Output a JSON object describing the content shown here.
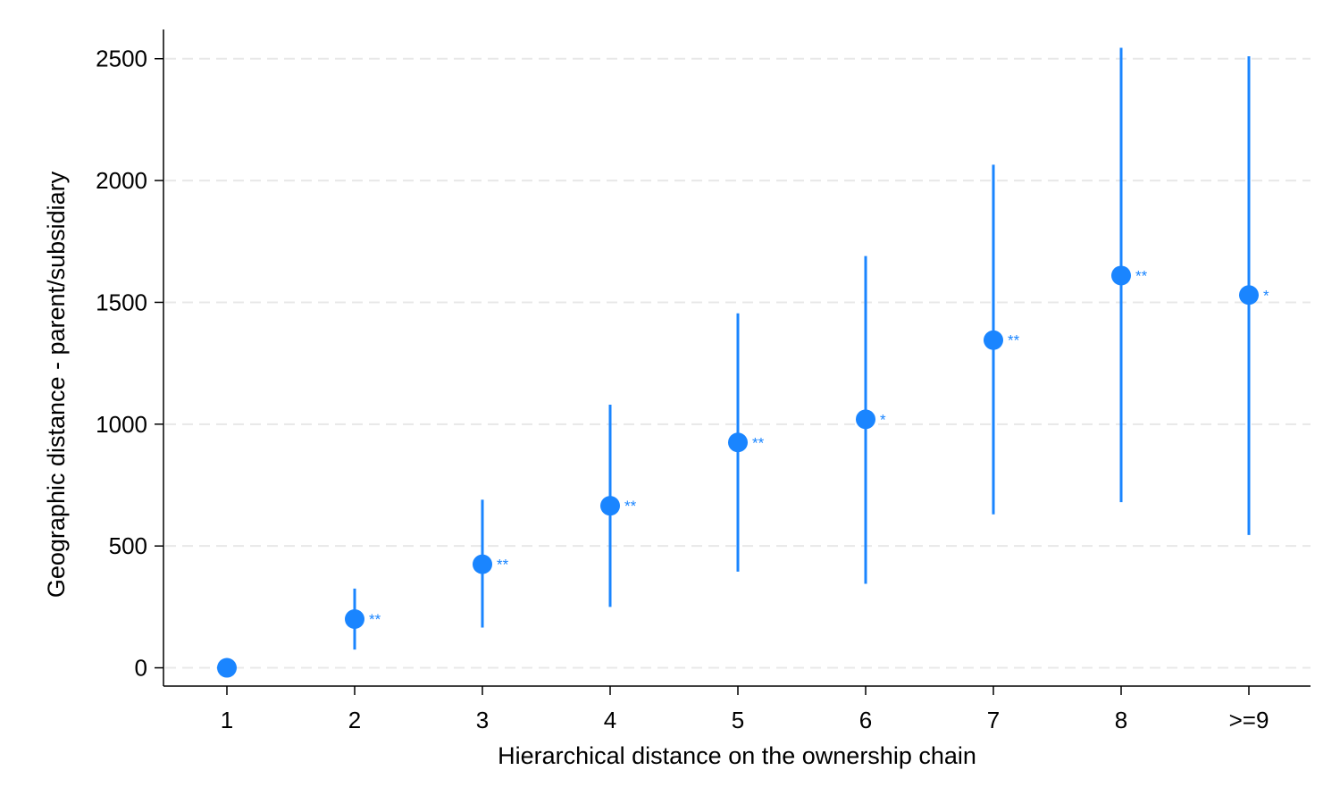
{
  "chart_data": {
    "type": "scatter",
    "title": "",
    "xlabel": "Hierarchical distance on the ownership chain",
    "ylabel": "Geographic distance - parent/subsidiary",
    "categories": [
      "1",
      "2",
      "3",
      "4",
      "5",
      "6",
      "7",
      "8",
      ">=9"
    ],
    "estimates": [
      0,
      200,
      425,
      665,
      925,
      1020,
      1345,
      1610,
      1530
    ],
    "ci_lower": [
      null,
      75,
      165,
      250,
      395,
      345,
      630,
      680,
      545
    ],
    "ci_upper": [
      null,
      325,
      690,
      1080,
      1455,
      1690,
      2065,
      2545,
      2510
    ],
    "significance": [
      "",
      "**",
      "**",
      "**",
      "**",
      "*",
      "**",
      "**",
      "*"
    ],
    "ylim": [
      -75,
      2620
    ],
    "yticks": [
      0,
      500,
      1000,
      1500,
      2000,
      2500
    ],
    "grid": "horizontal dashed",
    "legend": "none",
    "colors": {
      "marker": "#1a85ff",
      "grid": "#e8e8e8",
      "axis": "#000000"
    }
  }
}
